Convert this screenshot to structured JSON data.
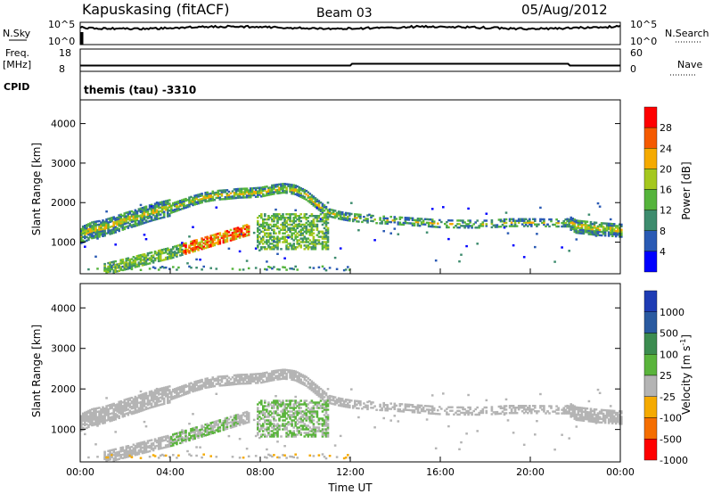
{
  "header": {
    "station": "Kapuskasing (fitACF)",
    "beam": "Beam 03",
    "date": "05/Aug/2012"
  },
  "top_panels": {
    "nsky_label": "N.Sky",
    "nsky_ticks": [
      "10^5",
      "10^0"
    ],
    "nsearch_label": "N.Search",
    "nsearch_ticks": [
      "10^5",
      "10^0"
    ],
    "freq_label": "Freq.",
    "freq_unit": "[MHz]",
    "freq_ticks": [
      "18",
      "8"
    ],
    "nave_label": "Nave",
    "nave_ticks": [
      "60",
      "0"
    ],
    "cpid_label": "CPID",
    "cpid_text": "themis (tau) -3310"
  },
  "chart_data": [
    {
      "type": "heatmap",
      "name": "power",
      "ylabel": "Slant Range [km]",
      "ylim": [
        200,
        4600
      ],
      "yticks": [
        "1000",
        "2000",
        "3000",
        "4000"
      ],
      "colorbar_label": "Power [dB]",
      "colorbar_ticks": [
        "4",
        "8",
        "12",
        "16",
        "20",
        "24",
        "28"
      ],
      "colors": [
        "#0000ff",
        "#2a5ab4",
        "#3d8c6e",
        "#55b43c",
        "#a5c81e",
        "#f5aa00",
        "#f55a00",
        "#ff0000"
      ],
      "band_centers_km": [
        [
          0.0,
          1150
        ],
        [
          0.5,
          1280
        ],
        [
          1.0,
          1330
        ],
        [
          1.5,
          1420
        ],
        [
          2.0,
          1520
        ],
        [
          2.5,
          1600
        ],
        [
          3.0,
          1700
        ],
        [
          3.5,
          1780
        ],
        [
          4.0,
          1850
        ],
        [
          4.5,
          1950
        ],
        [
          5.0,
          2050
        ],
        [
          5.5,
          2130
        ],
        [
          6.0,
          2180
        ],
        [
          6.5,
          2200
        ],
        [
          7.0,
          2230
        ],
        [
          7.5,
          2240
        ],
        [
          8.0,
          2260
        ],
        [
          8.5,
          2320
        ],
        [
          9.0,
          2360
        ],
        [
          9.5,
          2320
        ],
        [
          10.0,
          2180
        ],
        [
          10.5,
          1950
        ],
        [
          11.0,
          1720
        ],
        [
          11.5,
          1650
        ],
        [
          12.0,
          1600
        ],
        [
          13.0,
          1550
        ],
        [
          14.0,
          1520
        ],
        [
          15.0,
          1480
        ],
        [
          16.0,
          1440
        ],
        [
          17.0,
          1430
        ],
        [
          18.0,
          1430
        ],
        [
          19.0,
          1470
        ],
        [
          20.0,
          1470
        ],
        [
          21.0,
          1460
        ],
        [
          21.75,
          1460
        ],
        [
          22.0,
          1380
        ],
        [
          23.0,
          1320
        ],
        [
          24.0,
          1280
        ]
      ]
    },
    {
      "type": "heatmap",
      "name": "velocity",
      "ylabel": "Slant Range [km]",
      "ylim": [
        200,
        4600
      ],
      "yticks": [
        "1000",
        "2000",
        "3000",
        "4000"
      ],
      "xlabel": "Time UT",
      "xticks": [
        "00:00",
        "04:00",
        "08:00",
        "12:00",
        "16:00",
        "20:00",
        "00:00"
      ],
      "colorbar_label": "Velocity",
      "colorbar_unit": "[m s",
      "colorbar_unit_sup": "-1",
      "colorbar_unit_end": "]",
      "colorbar_ticks": [
        "1000",
        "500",
        "100",
        "25",
        "-25",
        "-100",
        "-500",
        "-1000"
      ],
      "colors": [
        "#1e3cb4",
        "#2a5aa0",
        "#3c8c50",
        "#5ab43c",
        "#b4b4b4",
        "#f5aa00",
        "#f56e00",
        "#ff0000"
      ]
    }
  ]
}
